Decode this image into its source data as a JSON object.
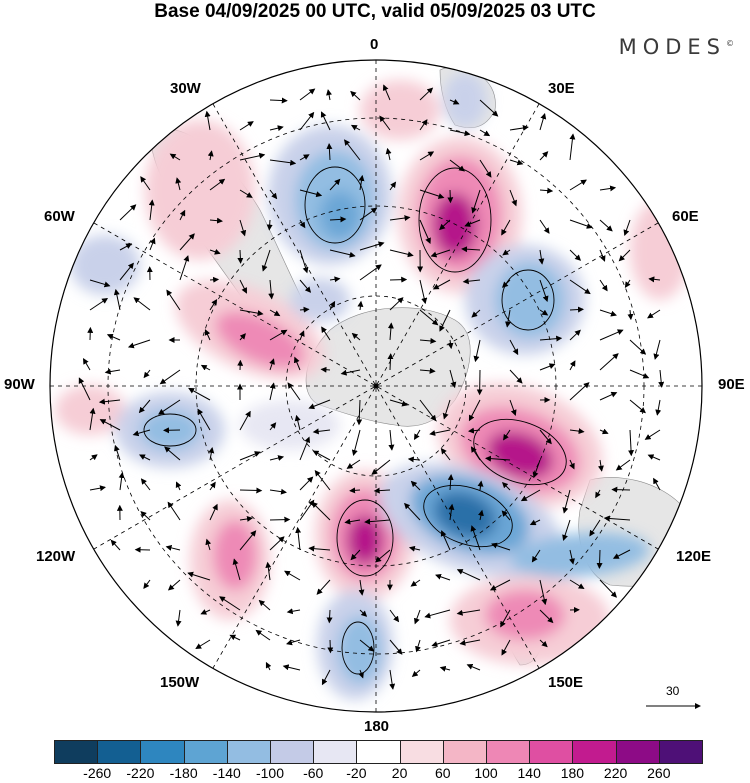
{
  "title": "Base 04/09/2025 00 UTC, valid 05/09/2025 03 UTC",
  "brand": "MODES",
  "brand_mark": "©",
  "map": {
    "projection": "south-polar-stereographic",
    "longitude_labels": {
      "top": "0",
      "bottom": "180",
      "left": "90W",
      "right": "90E",
      "upper_left_30": "30W",
      "upper_right_30": "30E",
      "upper_left_60": "60W",
      "upper_right_60": "60E",
      "lower_left_120": "120W",
      "lower_right_120": "120E",
      "lower_left_150": "150W",
      "lower_right_150": "150E"
    },
    "vector_scale_label": "30",
    "colors": {
      "land": "#e6e6e6",
      "neg_strong": "#2a6fa8",
      "neg_mid": "#6aa6d6",
      "neg_light": "#c9d1ea",
      "pos_light": "#f6cdd6",
      "pos_mid": "#ee8ab6",
      "pos_strong": "#b5168a"
    }
  },
  "colorbar": {
    "ticks": [
      "-260",
      "-220",
      "-180",
      "-140",
      "-100",
      "-60",
      "-20",
      "20",
      "60",
      "100",
      "140",
      "180",
      "220",
      "260"
    ],
    "colors": [
      "#0f3d5e",
      "#135f92",
      "#2e86bf",
      "#5ea4d3",
      "#93bde2",
      "#c4cbe7",
      "#e7e7f3",
      "#ffffff",
      "#f8dde2",
      "#f4b6c6",
      "#ee87b5",
      "#df4fa2",
      "#c21b8f",
      "#8d0b86",
      "#4e1077"
    ]
  }
}
